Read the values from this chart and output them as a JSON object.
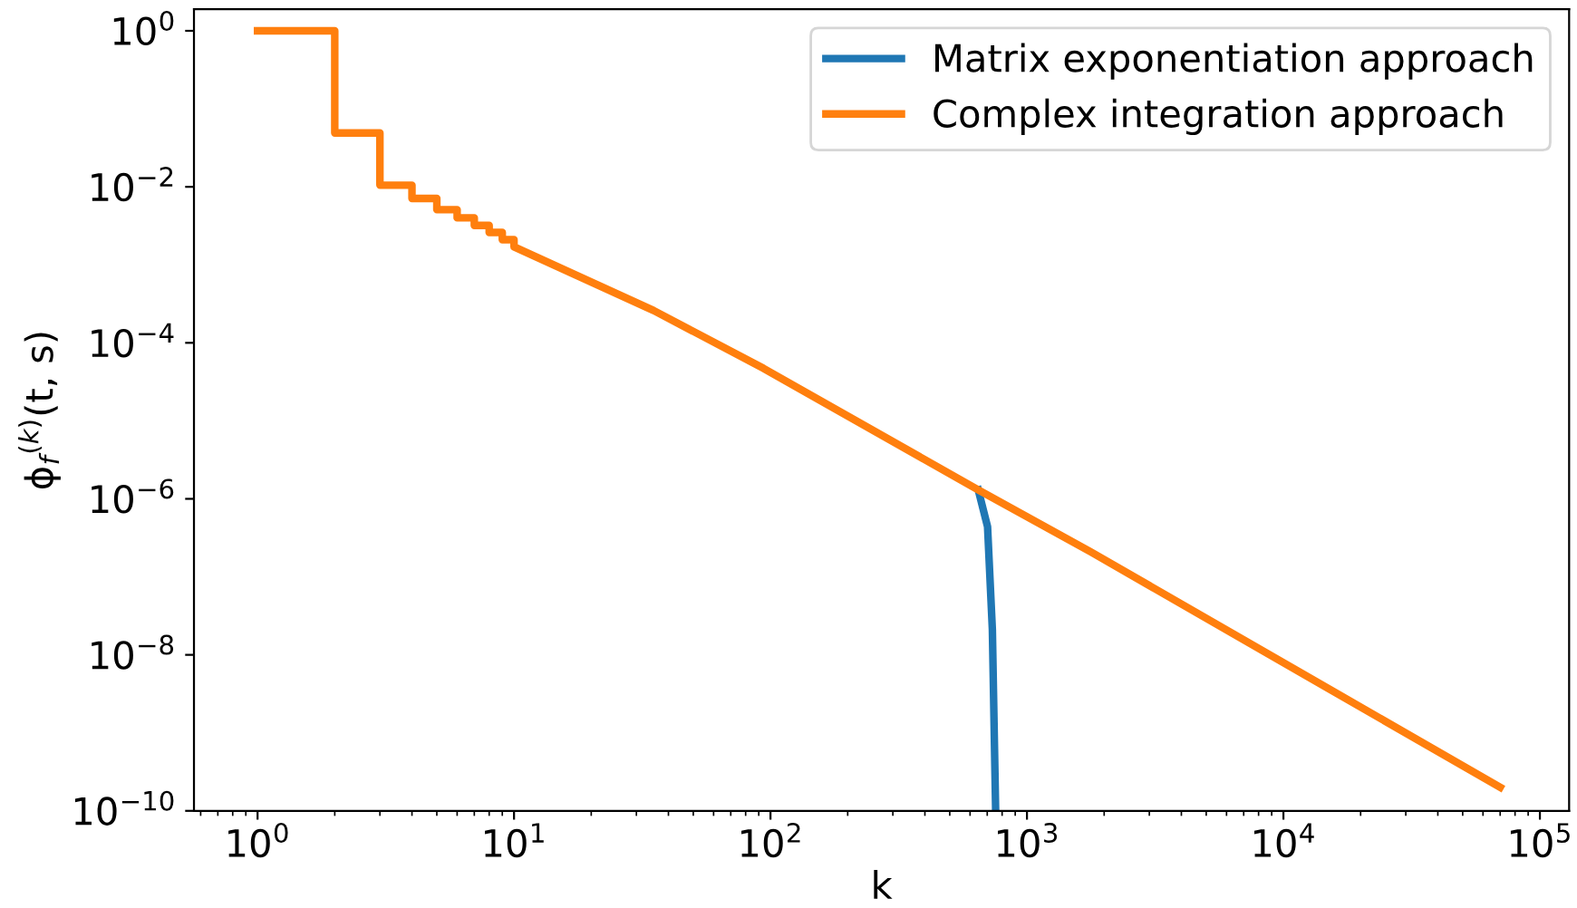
{
  "chart_data": {
    "type": "line",
    "xlabel": "k",
    "ylabel": "ϕ$_{f}$$^{(k)}$(t, s)",
    "log": "xy",
    "legend": "top right",
    "grid": false,
    "xlim": [
      0.565,
      130000
    ],
    "ylim": [
      1e-10,
      1.9
    ],
    "xticks": [
      {
        "value": 1,
        "label": "10$^{0}$"
      },
      {
        "value": 10,
        "label": "10$^{1}$"
      },
      {
        "value": 100,
        "label": "10$^{2}$"
      },
      {
        "value": 1000,
        "label": "10$^{3}$"
      },
      {
        "value": 10000,
        "label": "10$^{4}$"
      },
      {
        "value": 100000,
        "label": "10$^{5}$"
      }
    ],
    "yticks": [
      {
        "value": 1,
        "label": "10$^{0}$"
      },
      {
        "value": 0.01,
        "label": "10$^{−2}$"
      },
      {
        "value": 0.0001,
        "label": "10$^{−4}$"
      },
      {
        "value": 1e-06,
        "label": "10$^{−6}$"
      },
      {
        "value": 1e-08,
        "label": "10$^{−8}$"
      },
      {
        "value": 1e-10,
        "label": "10$^{−10}$"
      }
    ],
    "series": [
      {
        "name": "Matrix exponentiation approach",
        "color": "#1f77b4",
        "x": [
          646,
          702,
          733,
          755
        ],
        "values": [
          1.3e-06,
          4.4e-07,
          2.1e-08,
          1e-10
        ]
      },
      {
        "name": "Complex integration approach",
        "color": "#ff7f0e",
        "x": [
          1,
          2,
          2,
          3,
          3,
          4,
          4,
          5,
          5,
          6,
          6,
          7,
          7,
          8,
          8,
          9,
          9,
          10,
          10,
          35,
          94,
          646,
          1770,
          70000
        ],
        "values": [
          1,
          1,
          0.049,
          0.049,
          0.0105,
          0.0105,
          0.0071,
          0.0071,
          0.0051,
          0.0051,
          0.004,
          0.004,
          0.0032,
          0.0032,
          0.0026,
          0.0026,
          0.0021,
          0.0021,
          0.0017,
          0.00026,
          4.7e-05,
          1.3e-06,
          2.1e-07,
          2e-10
        ]
      }
    ]
  }
}
